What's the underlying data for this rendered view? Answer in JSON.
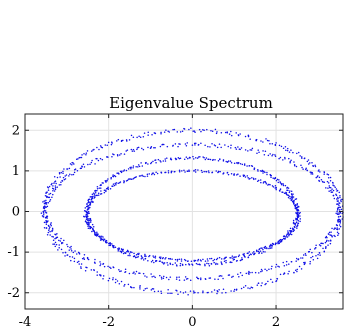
{
  "chart_data": {
    "type": "scatter",
    "title": "Eigenvalue Spectrum",
    "xlabel": "",
    "ylabel": "",
    "xlim": [
      -4,
      3.6
    ],
    "ylim": [
      -2.4,
      2.4
    ],
    "xticks": [
      -4,
      -2,
      0,
      2
    ],
    "yticks": [
      -2,
      -1,
      0,
      1,
      2
    ],
    "xtick_labels": [
      "-4",
      "-2",
      "0",
      "2"
    ],
    "ytick_labels": [
      "-2",
      "-1",
      "0",
      "1",
      "2"
    ],
    "grid": true,
    "marker_color": "#1010e6",
    "series": [
      {
        "values": [
          {
            "cx": 0.0,
            "cy": 0.0,
            "rx": 3.55,
            "ry": 2.0,
            "t_start": 90,
            "t_end": 450
          },
          {
            "cx": 0.0,
            "cy": 0.0,
            "rx": 3.5,
            "ry": 1.65,
            "t_start": 90,
            "t_end": 450
          },
          {
            "cx": 0.0,
            "cy": 0.0,
            "rx": 2.5,
            "ry": 1.32,
            "t_start": 90,
            "t_end": 450
          },
          {
            "cx": 0.0,
            "cy": -0.1,
            "rx": 2.55,
            "ry": 1.1,
            "t_start": 90,
            "t_end": 450
          }
        ],
        "points_per_ring": 420,
        "jitter": 0.018
      }
    ]
  }
}
